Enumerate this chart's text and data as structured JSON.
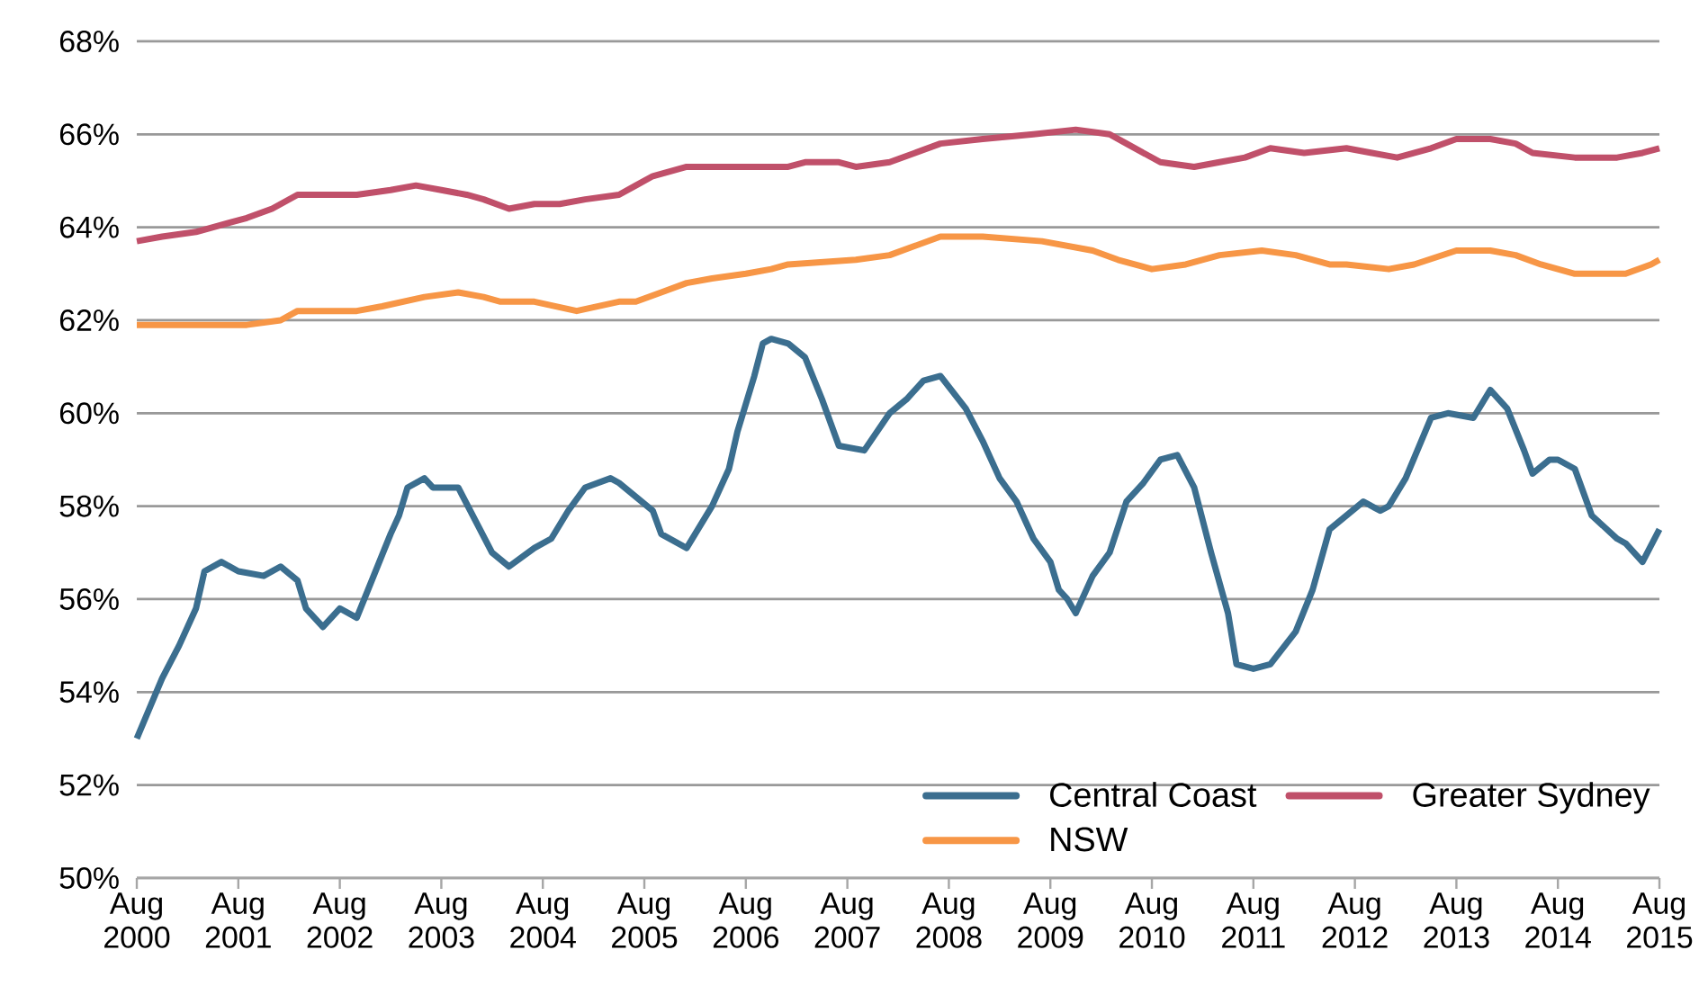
{
  "chart_data": {
    "type": "line",
    "xlim": [
      "2000-08",
      "2015-08"
    ],
    "xticks": [
      {
        "value": "2000-08",
        "label": "Aug 2000"
      },
      {
        "value": "2001-08",
        "label": "Aug 2001"
      },
      {
        "value": "2002-08",
        "label": "Aug 2002"
      },
      {
        "value": "2003-08",
        "label": "Aug 2003"
      },
      {
        "value": "2004-08",
        "label": "Aug 2004"
      },
      {
        "value": "2005-08",
        "label": "Aug 2005"
      },
      {
        "value": "2006-08",
        "label": "Aug 2006"
      },
      {
        "value": "2007-08",
        "label": "Aug 2007"
      },
      {
        "value": "2008-08",
        "label": "Aug 2008"
      },
      {
        "value": "2009-08",
        "label": "Aug 2009"
      },
      {
        "value": "2010-08",
        "label": "Aug 2010"
      },
      {
        "value": "2011-08",
        "label": "Aug 2011"
      },
      {
        "value": "2012-08",
        "label": "Aug 2012"
      },
      {
        "value": "2013-08",
        "label": "Aug 2013"
      },
      {
        "value": "2014-08",
        "label": "Aug 2014"
      },
      {
        "value": "2015-08",
        "label": "Aug 2015"
      }
    ],
    "ylim": [
      50,
      68
    ],
    "yticks": [
      {
        "value": 50,
        "label": "50%"
      },
      {
        "value": 52,
        "label": "52%"
      },
      {
        "value": 54,
        "label": "54%"
      },
      {
        "value": 56,
        "label": "56%"
      },
      {
        "value": 58,
        "label": "58%"
      },
      {
        "value": 60,
        "label": "60%"
      },
      {
        "value": 62,
        "label": "62%"
      },
      {
        "value": 64,
        "label": "64%"
      },
      {
        "value": 66,
        "label": "66%"
      },
      {
        "value": 68,
        "label": "68%"
      }
    ],
    "grid": "y",
    "legend": "bottom right",
    "line_style": "solid",
    "series": [
      {
        "name": "Central Coast",
        "color": "#3b6e8f",
        "x": [
          "2000-08",
          "2000-11",
          "2001-01",
          "2001-03",
          "2001-04",
          "2001-06",
          "2001-08",
          "2001-11",
          "2002-01",
          "2002-03",
          "2002-04",
          "2002-06",
          "2002-08",
          "2002-10",
          "2002-12",
          "2003-02",
          "2003-03",
          "2003-04",
          "2003-06",
          "2003-07",
          "2003-10",
          "2004-02",
          "2004-04",
          "2004-07",
          "2004-09",
          "2004-11",
          "2005-01",
          "2005-04",
          "2005-05",
          "2005-07",
          "2005-09",
          "2005-10",
          "2006-01",
          "2006-04",
          "2006-06",
          "2006-07",
          "2006-09",
          "2006-10",
          "2006-11",
          "2007-01",
          "2007-03",
          "2007-05",
          "2007-07",
          "2007-10",
          "2008-01",
          "2008-03",
          "2008-05",
          "2008-07",
          "2008-10",
          "2008-12",
          "2009-02",
          "2009-04",
          "2009-06",
          "2009-08",
          "2009-09",
          "2009-10",
          "2009-11",
          "2010-01",
          "2010-03",
          "2010-05",
          "2010-07",
          "2010-09",
          "2010-11",
          "2011-01",
          "2011-03",
          "2011-05",
          "2011-06",
          "2011-08",
          "2011-10",
          "2012-01",
          "2012-03",
          "2012-05",
          "2012-07",
          "2012-09",
          "2012-11",
          "2012-12",
          "2013-02",
          "2013-05",
          "2013-07",
          "2013-10",
          "2013-12",
          "2014-02",
          "2014-04",
          "2014-05",
          "2014-07",
          "2014-08",
          "2014-10",
          "2014-12",
          "2015-03",
          "2015-04",
          "2015-06",
          "2015-08"
        ],
        "values": [
          53.0,
          54.3,
          55.0,
          55.8,
          56.6,
          56.8,
          56.6,
          56.5,
          56.7,
          56.4,
          55.8,
          55.4,
          55.8,
          55.6,
          56.5,
          57.4,
          57.8,
          58.4,
          58.6,
          58.4,
          58.4,
          57.0,
          56.7,
          57.1,
          57.3,
          57.9,
          58.4,
          58.6,
          58.5,
          58.2,
          57.9,
          57.4,
          57.1,
          58.0,
          58.8,
          59.6,
          60.8,
          61.5,
          61.6,
          61.5,
          61.2,
          60.3,
          59.3,
          59.2,
          60.0,
          60.3,
          60.7,
          60.8,
          60.1,
          59.4,
          58.6,
          58.1,
          57.3,
          56.8,
          56.2,
          56.0,
          55.7,
          56.5,
          57.0,
          58.1,
          58.5,
          59.0,
          59.1,
          58.4,
          57.0,
          55.7,
          54.6,
          54.5,
          54.6,
          55.3,
          56.2,
          57.5,
          57.8,
          58.1,
          57.9,
          58.0,
          58.6,
          59.9,
          60.0,
          59.9,
          60.5,
          60.1,
          59.2,
          58.7,
          59.0,
          59.0,
          58.8,
          57.8,
          57.3,
          57.2,
          56.8,
          57.5
        ]
      },
      {
        "name": "Greater Sydney",
        "color": "#c0506a",
        "x": [
          "2000-08",
          "2000-11",
          "2001-03",
          "2001-07",
          "2001-09",
          "2001-12",
          "2002-03",
          "2002-07",
          "2002-10",
          "2003-02",
          "2003-05",
          "2003-08",
          "2003-11",
          "2004-01",
          "2004-04",
          "2004-07",
          "2004-10",
          "2005-01",
          "2005-05",
          "2005-07",
          "2005-09",
          "2006-01",
          "2006-06",
          "2006-09",
          "2007-01",
          "2007-03",
          "2007-07",
          "2007-09",
          "2008-01",
          "2008-04",
          "2008-07",
          "2008-12",
          "2009-06",
          "2009-11",
          "2010-03",
          "2010-05",
          "2010-09",
          "2011-01",
          "2011-04",
          "2011-07",
          "2011-10",
          "2012-02",
          "2012-07",
          "2012-10",
          "2013-01",
          "2013-05",
          "2013-08",
          "2013-12",
          "2014-03",
          "2014-05",
          "2014-10",
          "2015-03",
          "2015-06",
          "2015-08"
        ],
        "values": [
          63.7,
          63.8,
          63.9,
          64.1,
          64.2,
          64.4,
          64.7,
          64.7,
          64.7,
          64.8,
          64.9,
          64.8,
          64.7,
          64.6,
          64.4,
          64.5,
          64.5,
          64.6,
          64.7,
          64.9,
          65.1,
          65.3,
          65.3,
          65.3,
          65.3,
          65.4,
          65.4,
          65.3,
          65.4,
          65.6,
          65.8,
          65.9,
          66.0,
          66.1,
          66.0,
          65.8,
          65.4,
          65.3,
          65.4,
          65.5,
          65.7,
          65.6,
          65.7,
          65.6,
          65.5,
          65.7,
          65.9,
          65.9,
          65.8,
          65.6,
          65.5,
          65.5,
          65.6,
          65.7
        ]
      },
      {
        "name": "NSW",
        "color": "#f79646",
        "x": [
          "2000-08",
          "2001-02",
          "2001-09",
          "2002-01",
          "2002-03",
          "2002-10",
          "2003-01",
          "2003-06",
          "2003-10",
          "2004-01",
          "2004-03",
          "2004-07",
          "2004-12",
          "2005-05",
          "2005-07",
          "2005-10",
          "2006-01",
          "2006-04",
          "2006-08",
          "2006-11",
          "2007-01",
          "2007-09",
          "2008-01",
          "2008-04",
          "2008-07",
          "2008-12",
          "2009-07",
          "2010-01",
          "2010-04",
          "2010-08",
          "2010-12",
          "2011-04",
          "2011-09",
          "2012-01",
          "2012-05",
          "2012-07",
          "2012-12",
          "2013-03",
          "2013-08",
          "2013-12",
          "2014-03",
          "2014-06",
          "2014-10",
          "2015-04",
          "2015-07",
          "2015-08"
        ],
        "values": [
          61.9,
          61.9,
          61.9,
          62.0,
          62.2,
          62.2,
          62.3,
          62.5,
          62.6,
          62.5,
          62.4,
          62.4,
          62.2,
          62.4,
          62.4,
          62.6,
          62.8,
          62.9,
          63.0,
          63.1,
          63.2,
          63.3,
          63.4,
          63.6,
          63.8,
          63.8,
          63.7,
          63.5,
          63.3,
          63.1,
          63.2,
          63.4,
          63.5,
          63.4,
          63.2,
          63.2,
          63.1,
          63.2,
          63.5,
          63.5,
          63.4,
          63.2,
          63.0,
          63.0,
          63.2,
          63.3
        ]
      }
    ]
  }
}
